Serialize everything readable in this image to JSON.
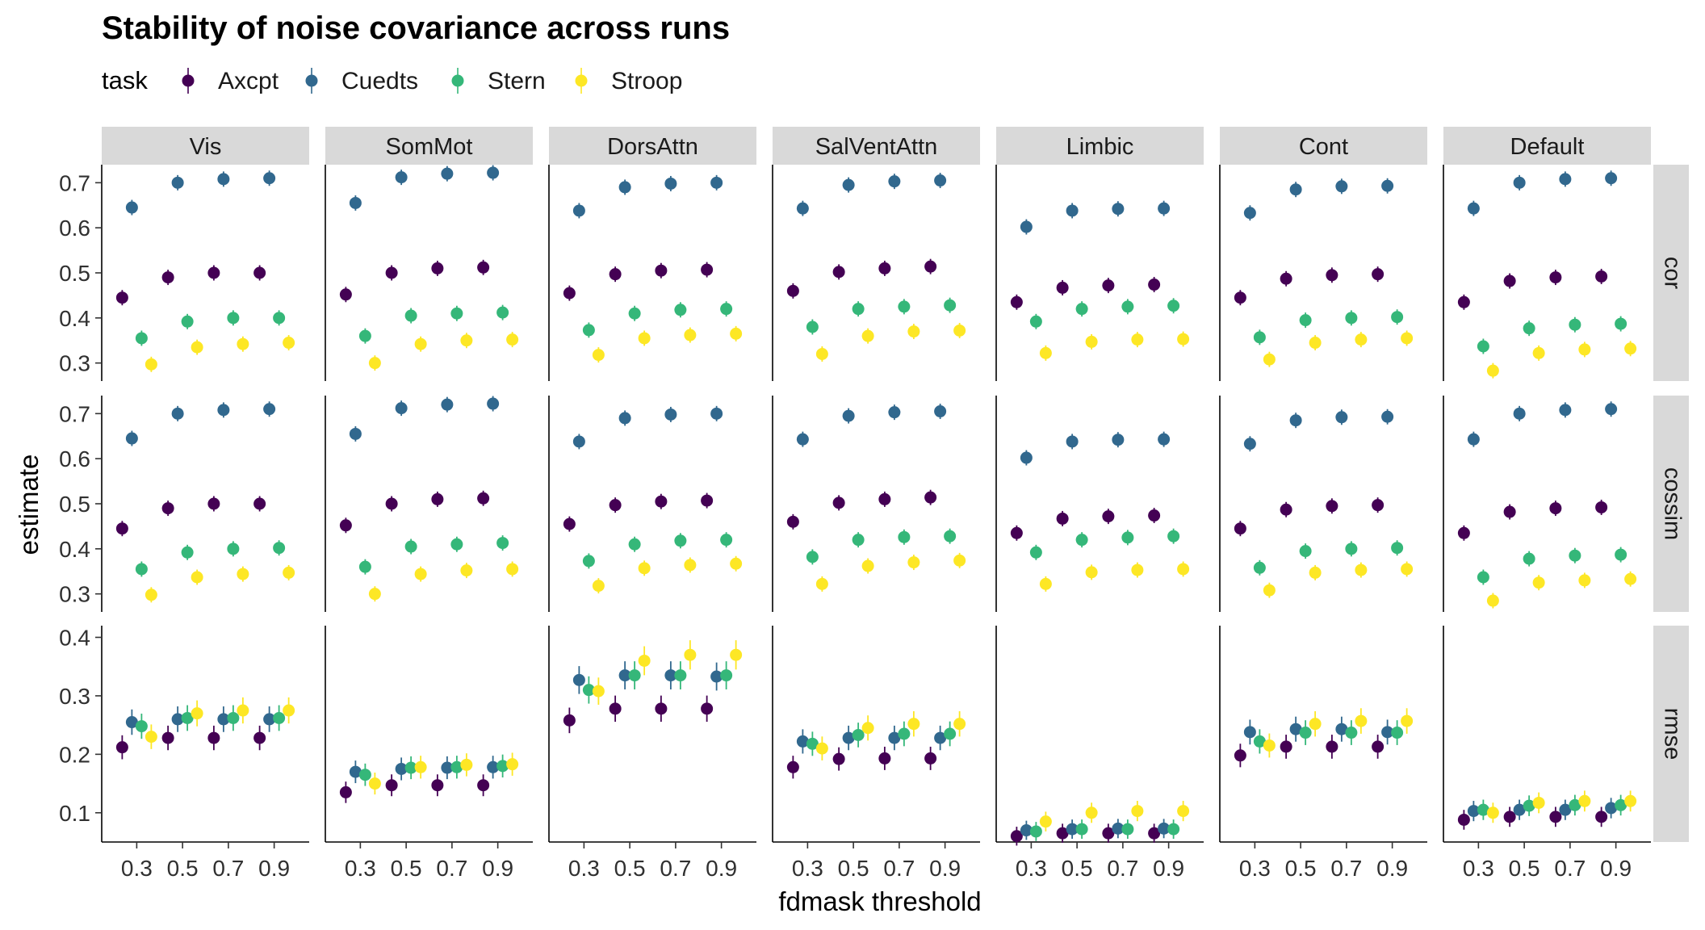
{
  "chart_data": {
    "type": "scatter",
    "title": "Stability of noise covariance across runs",
    "xlabel": "fdmask threshold",
    "ylabel": "estimate",
    "legend": {
      "title": "task",
      "placement": "top-left"
    },
    "series": [
      {
        "name": "Axcpt",
        "color": "#440154"
      },
      {
        "name": "Cuedts",
        "color": "#31688e"
      },
      {
        "name": "Stern",
        "color": "#35b779"
      },
      {
        "name": "Stroop",
        "color": "#fde725"
      }
    ],
    "x_categories": [
      "0.3",
      "0.5",
      "0.7",
      "0.9"
    ],
    "networks": [
      "Vis",
      "SomMot",
      "DorsAttn",
      "SalVentAttn",
      "Limbic",
      "Cont",
      "Default"
    ],
    "metrics": [
      {
        "name": "cor",
        "ylim": [
          0.26,
          0.74
        ],
        "ticks": [
          "0.3",
          "0.4",
          "0.5",
          "0.6",
          "0.7"
        ]
      },
      {
        "name": "cossim",
        "ylim": [
          0.26,
          0.74
        ],
        "ticks": [
          "0.3",
          "0.4",
          "0.5",
          "0.6",
          "0.7"
        ]
      },
      {
        "name": "rmse",
        "ylim": [
          0.05,
          0.42
        ],
        "ticks": [
          "0.1",
          "0.2",
          "0.3",
          "0.4"
        ]
      }
    ],
    "data": {
      "cor": {
        "Vis": {
          "Axcpt": [
            0.445,
            0.49,
            0.5,
            0.5
          ],
          "Cuedts": [
            0.645,
            0.7,
            0.708,
            0.71
          ],
          "Stern": [
            0.355,
            0.392,
            0.4,
            0.4
          ],
          "Stroop": [
            0.297,
            0.335,
            0.342,
            0.345
          ]
        },
        "SomMot": {
          "Axcpt": [
            0.452,
            0.5,
            0.51,
            0.512
          ],
          "Cuedts": [
            0.655,
            0.712,
            0.72,
            0.722
          ],
          "Stern": [
            0.36,
            0.405,
            0.41,
            0.412
          ],
          "Stroop": [
            0.3,
            0.342,
            0.35,
            0.352
          ]
        },
        "DorsAttn": {
          "Axcpt": [
            0.455,
            0.497,
            0.505,
            0.507
          ],
          "Cuedts": [
            0.638,
            0.69,
            0.698,
            0.7
          ],
          "Stern": [
            0.373,
            0.41,
            0.418,
            0.42
          ],
          "Stroop": [
            0.318,
            0.355,
            0.362,
            0.365
          ]
        },
        "SalVentAttn": {
          "Axcpt": [
            0.46,
            0.502,
            0.51,
            0.514
          ],
          "Cuedts": [
            0.643,
            0.695,
            0.703,
            0.705
          ],
          "Stern": [
            0.38,
            0.42,
            0.425,
            0.428
          ],
          "Stroop": [
            0.32,
            0.36,
            0.37,
            0.372
          ]
        },
        "Limbic": {
          "Axcpt": [
            0.435,
            0.467,
            0.472,
            0.474
          ],
          "Cuedts": [
            0.602,
            0.638,
            0.642,
            0.643
          ],
          "Stern": [
            0.392,
            0.42,
            0.425,
            0.427
          ],
          "Stroop": [
            0.322,
            0.347,
            0.352,
            0.353
          ]
        },
        "Cont": {
          "Axcpt": [
            0.445,
            0.487,
            0.495,
            0.497
          ],
          "Cuedts": [
            0.633,
            0.685,
            0.692,
            0.693
          ],
          "Stern": [
            0.357,
            0.395,
            0.4,
            0.402
          ],
          "Stroop": [
            0.308,
            0.345,
            0.352,
            0.355
          ]
        },
        "Default": {
          "Axcpt": [
            0.435,
            0.482,
            0.49,
            0.492
          ],
          "Cuedts": [
            0.643,
            0.7,
            0.708,
            0.71
          ],
          "Stern": [
            0.337,
            0.377,
            0.385,
            0.387
          ],
          "Stroop": [
            0.283,
            0.322,
            0.33,
            0.332
          ]
        }
      },
      "cossim": {
        "Vis": {
          "Axcpt": [
            0.445,
            0.49,
            0.5,
            0.5
          ],
          "Cuedts": [
            0.645,
            0.7,
            0.708,
            0.71
          ],
          "Stern": [
            0.355,
            0.392,
            0.4,
            0.402
          ],
          "Stroop": [
            0.298,
            0.337,
            0.344,
            0.347
          ]
        },
        "SomMot": {
          "Axcpt": [
            0.452,
            0.5,
            0.51,
            0.512
          ],
          "Cuedts": [
            0.655,
            0.712,
            0.72,
            0.722
          ],
          "Stern": [
            0.36,
            0.405,
            0.41,
            0.413
          ],
          "Stroop": [
            0.3,
            0.344,
            0.352,
            0.355
          ]
        },
        "DorsAttn": {
          "Axcpt": [
            0.455,
            0.497,
            0.505,
            0.507
          ],
          "Cuedts": [
            0.638,
            0.69,
            0.698,
            0.7
          ],
          "Stern": [
            0.373,
            0.41,
            0.418,
            0.42
          ],
          "Stroop": [
            0.318,
            0.357,
            0.364,
            0.367
          ]
        },
        "SalVentAttn": {
          "Axcpt": [
            0.46,
            0.502,
            0.51,
            0.514
          ],
          "Cuedts": [
            0.643,
            0.695,
            0.703,
            0.705
          ],
          "Stern": [
            0.382,
            0.42,
            0.426,
            0.428
          ],
          "Stroop": [
            0.322,
            0.362,
            0.37,
            0.374
          ]
        },
        "Limbic": {
          "Axcpt": [
            0.435,
            0.467,
            0.472,
            0.474
          ],
          "Cuedts": [
            0.602,
            0.638,
            0.642,
            0.643
          ],
          "Stern": [
            0.392,
            0.42,
            0.425,
            0.428
          ],
          "Stroop": [
            0.322,
            0.348,
            0.353,
            0.355
          ]
        },
        "Cont": {
          "Axcpt": [
            0.445,
            0.487,
            0.495,
            0.497
          ],
          "Cuedts": [
            0.633,
            0.685,
            0.692,
            0.693
          ],
          "Stern": [
            0.358,
            0.395,
            0.4,
            0.402
          ],
          "Stroop": [
            0.308,
            0.347,
            0.353,
            0.355
          ]
        },
        "Default": {
          "Axcpt": [
            0.435,
            0.482,
            0.49,
            0.492
          ],
          "Cuedts": [
            0.643,
            0.7,
            0.708,
            0.71
          ],
          "Stern": [
            0.337,
            0.378,
            0.385,
            0.387
          ],
          "Stroop": [
            0.285,
            0.325,
            0.33,
            0.333
          ]
        }
      },
      "rmse": {
        "Vis": {
          "Axcpt": [
            0.212,
            0.228,
            0.228,
            0.228
          ],
          "Cuedts": [
            0.255,
            0.26,
            0.26,
            0.26
          ],
          "Stern": [
            0.248,
            0.262,
            0.262,
            0.262
          ],
          "Stroop": [
            0.23,
            0.27,
            0.275,
            0.275
          ]
        },
        "SomMot": {
          "Axcpt": [
            0.135,
            0.147,
            0.147,
            0.147
          ],
          "Cuedts": [
            0.17,
            0.175,
            0.177,
            0.178
          ],
          "Stern": [
            0.165,
            0.177,
            0.178,
            0.18
          ],
          "Stroop": [
            0.15,
            0.178,
            0.182,
            0.183
          ]
        },
        "DorsAttn": {
          "Axcpt": [
            0.258,
            0.278,
            0.278,
            0.278
          ],
          "Cuedts": [
            0.327,
            0.335,
            0.335,
            0.333
          ],
          "Stern": [
            0.31,
            0.335,
            0.335,
            0.335
          ],
          "Stroop": [
            0.308,
            0.36,
            0.37,
            0.37
          ]
        },
        "SalVentAttn": {
          "Axcpt": [
            0.178,
            0.192,
            0.193,
            0.193
          ],
          "Cuedts": [
            0.222,
            0.228,
            0.228,
            0.228
          ],
          "Stern": [
            0.218,
            0.233,
            0.235,
            0.235
          ],
          "Stroop": [
            0.21,
            0.245,
            0.252,
            0.252
          ]
        },
        "Limbic": {
          "Axcpt": [
            0.06,
            0.065,
            0.065,
            0.065
          ],
          "Cuedts": [
            0.07,
            0.072,
            0.073,
            0.073
          ],
          "Stern": [
            0.068,
            0.072,
            0.072,
            0.072
          ],
          "Stroop": [
            0.085,
            0.1,
            0.103,
            0.103
          ]
        },
        "Cont": {
          "Axcpt": [
            0.198,
            0.213,
            0.213,
            0.213
          ],
          "Cuedts": [
            0.238,
            0.243,
            0.243,
            0.238
          ],
          "Stern": [
            0.222,
            0.237,
            0.237,
            0.237
          ],
          "Stroop": [
            0.215,
            0.252,
            0.257,
            0.257
          ]
        },
        "Default": {
          "Axcpt": [
            0.088,
            0.093,
            0.093,
            0.093
          ],
          "Cuedts": [
            0.103,
            0.105,
            0.105,
            0.108
          ],
          "Stern": [
            0.105,
            0.112,
            0.113,
            0.113
          ],
          "Stroop": [
            0.1,
            0.117,
            0.12,
            0.12
          ]
        }
      }
    },
    "grid": false
  }
}
